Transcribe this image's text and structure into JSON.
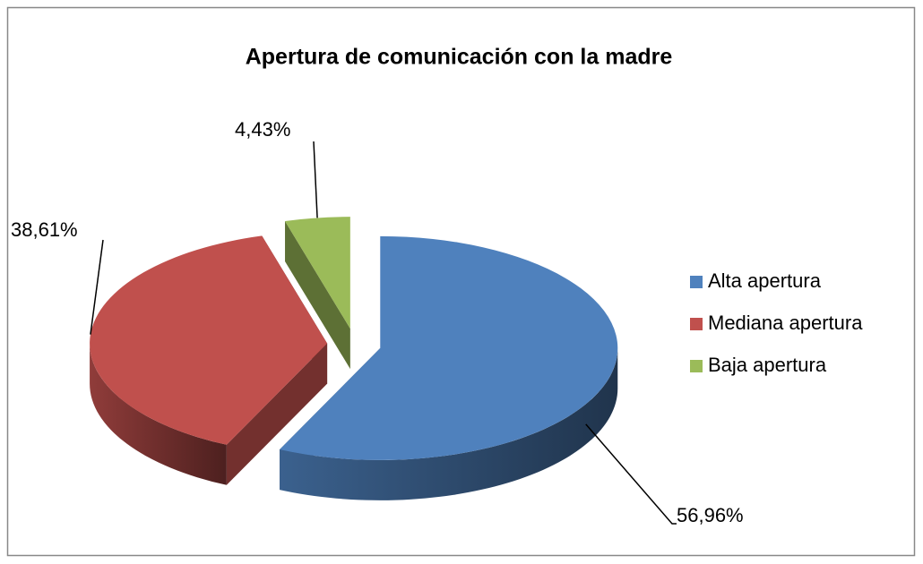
{
  "chart_data": {
    "type": "pie",
    "title": "Apertura de comunicación con la madre",
    "categories": [
      "Alta apertura",
      "Mediana apertura",
      "Baja apertura"
    ],
    "values": [
      56.96,
      38.61,
      4.43
    ],
    "value_labels": [
      "56,96%",
      "38,61%",
      "4,43%"
    ],
    "colors": [
      "#4f81bd",
      "#c0504d",
      "#9bbb59"
    ],
    "legend": "right"
  }
}
